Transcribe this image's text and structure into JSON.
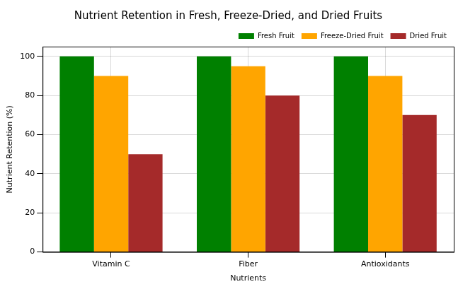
{
  "chart_data": {
    "type": "bar",
    "title": "Nutrient Retention in Fresh, Freeze-Dried, and Dried Fruits",
    "x_label": "Nutrients",
    "y_label": "Nutrient Retention (%)",
    "categories": [
      "Vitamin C",
      "Fiber",
      "Antioxidants"
    ],
    "series": [
      {
        "name": "Fresh Fruit",
        "color": "#008000",
        "values": [
          100,
          100,
          100
        ]
      },
      {
        "name": "Freeze-Dried Fruit",
        "color": "#ffa500",
        "values": [
          90,
          95,
          90
        ]
      },
      {
        "name": "Dried Fruit",
        "color": "#a52a2a",
        "values": [
          50,
          80,
          70
        ]
      }
    ],
    "ylim": [
      0,
      105
    ],
    "yticks": [
      0,
      20,
      40,
      60,
      80,
      100
    ],
    "grid": true,
    "legend": "upper right"
  }
}
